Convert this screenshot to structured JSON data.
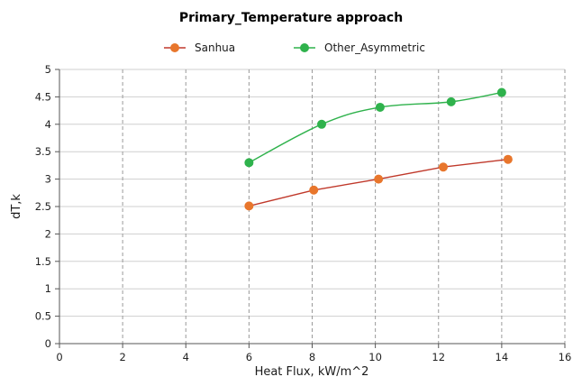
{
  "chart_data": {
    "type": "line",
    "title": "Primary_Temperature approach",
    "xlabel": "Heat Flux, kW/m^2",
    "ylabel": "dT,k",
    "xlim": [
      0,
      16
    ],
    "ylim": [
      0,
      5
    ],
    "x_ticks": [
      "0",
      "2",
      "4",
      "6",
      "8",
      "10",
      "12",
      "14",
      "16"
    ],
    "y_ticks": [
      "0",
      "0.5",
      "1",
      "1.5",
      "2",
      "2.5",
      "3",
      "3.5",
      "4",
      "4.5",
      "5"
    ],
    "grid": {
      "x": "dashed",
      "y": "solid"
    },
    "legend_position": "top",
    "series": [
      {
        "name": "Sanhua",
        "color": "#e8762c",
        "line_color": "#c0392b",
        "smooth": false,
        "points": [
          {
            "x": 6.0,
            "y": 2.51
          },
          {
            "x": 8.05,
            "y": 2.8
          },
          {
            "x": 10.1,
            "y": 3.0
          },
          {
            "x": 12.15,
            "y": 3.22
          },
          {
            "x": 14.2,
            "y": 3.36
          }
        ]
      },
      {
        "name": "Other_Asymmetric",
        "color": "#2fb24c",
        "line_color": "#2fb24c",
        "smooth": true,
        "points": [
          {
            "x": 6.0,
            "y": 3.3
          },
          {
            "x": 8.3,
            "y": 4.0
          },
          {
            "x": 10.15,
            "y": 4.31
          },
          {
            "x": 12.4,
            "y": 4.41
          },
          {
            "x": 14.0,
            "y": 4.58
          }
        ]
      }
    ]
  }
}
